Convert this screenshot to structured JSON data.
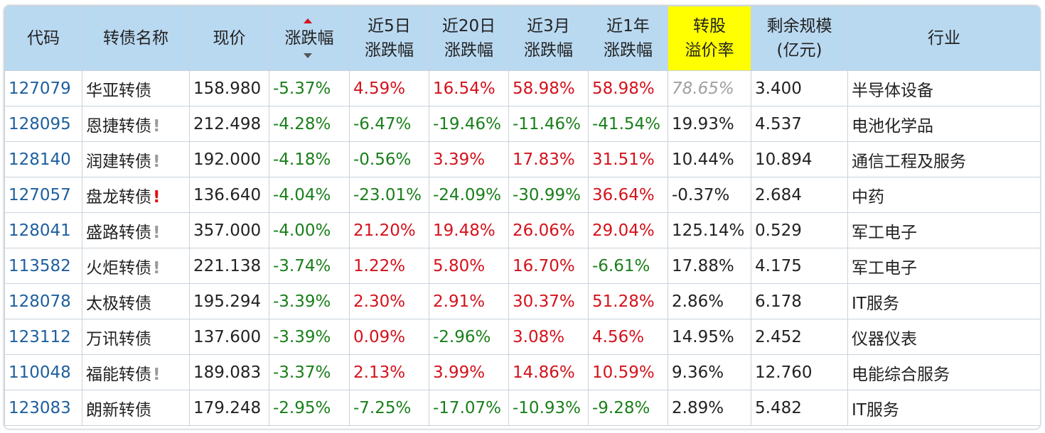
{
  "columns": [
    {
      "line1": "代码",
      "line2": ""
    },
    {
      "line1": "转债名称",
      "line2": ""
    },
    {
      "line1": "现价",
      "line2": ""
    },
    {
      "line1": "涨跌幅",
      "line2": ""
    },
    {
      "line1": "近5日",
      "line2": "涨跌幅"
    },
    {
      "line1": "近20日",
      "line2": "涨跌幅"
    },
    {
      "line1": "近3月",
      "line2": "涨跌幅"
    },
    {
      "line1": "近1年",
      "line2": "涨跌幅"
    },
    {
      "line1": "转股",
      "line2": "溢价率"
    },
    {
      "line1": "剩余规模",
      "line2": "(亿元)"
    },
    {
      "line1": "行业",
      "line2": ""
    }
  ],
  "sort_icons": {
    "asc": "sort-up-arrow-icon",
    "desc": "sort-down-arrow-icon"
  },
  "rows": [
    {
      "code": "127079",
      "name": "华亚转债",
      "flag": "",
      "price": "158.980",
      "chg": "-5.37%",
      "d5": "4.59%",
      "d20": "16.54%",
      "m3": "58.98%",
      "y1": "58.98%",
      "premium": "78.65%",
      "size": "3.400",
      "industry": "半导体设备"
    },
    {
      "code": "128095",
      "name": "恩捷转债",
      "flag": "!",
      "price": "212.498",
      "chg": "-4.28%",
      "d5": "-6.47%",
      "d20": "-19.46%",
      "m3": "-11.46%",
      "y1": "-41.54%",
      "premium": "19.93%",
      "size": "4.537",
      "industry": "电池化学品"
    },
    {
      "code": "128140",
      "name": "润建转债",
      "flag": "!",
      "price": "192.000",
      "chg": "-4.18%",
      "d5": "-0.56%",
      "d20": "3.39%",
      "m3": "17.83%",
      "y1": "31.51%",
      "premium": "10.44%",
      "size": "10.894",
      "industry": "通信工程及服务"
    },
    {
      "code": "127057",
      "name": "盘龙转债",
      "flag": "!",
      "price": "136.640",
      "chg": "-4.04%",
      "d5": "-23.01%",
      "d20": "-24.09%",
      "m3": "-30.99%",
      "y1": "36.64%",
      "premium": "-0.37%",
      "size": "2.684",
      "industry": "中药"
    },
    {
      "code": "128041",
      "name": "盛路转债",
      "flag": "!",
      "price": "357.000",
      "chg": "-4.00%",
      "d5": "21.20%",
      "d20": "19.48%",
      "m3": "26.06%",
      "y1": "29.04%",
      "premium": "125.14%",
      "size": "0.529",
      "industry": "军工电子"
    },
    {
      "code": "113582",
      "name": "火炬转债",
      "flag": "!",
      "price": "221.138",
      "chg": "-3.74%",
      "d5": "1.22%",
      "d20": "5.80%",
      "m3": "16.70%",
      "y1": "-6.61%",
      "premium": "17.88%",
      "size": "4.175",
      "industry": "军工电子"
    },
    {
      "code": "128078",
      "name": "太极转债",
      "flag": "",
      "price": "195.294",
      "chg": "-3.39%",
      "d5": "2.30%",
      "d20": "2.91%",
      "m3": "30.37%",
      "y1": "51.28%",
      "premium": "2.86%",
      "size": "6.178",
      "industry": "IT服务"
    },
    {
      "code": "123112",
      "name": "万讯转债",
      "flag": "",
      "price": "137.600",
      "chg": "-3.39%",
      "d5": "0.09%",
      "d20": "-2.96%",
      "m3": "3.08%",
      "y1": "4.56%",
      "premium": "14.95%",
      "size": "2.452",
      "industry": "仪器仪表"
    },
    {
      "code": "110048",
      "name": "福能转债",
      "flag": "!",
      "price": "189.083",
      "chg": "-3.37%",
      "d5": "2.13%",
      "d20": "3.99%",
      "m3": "14.86%",
      "y1": "10.59%",
      "premium": "9.36%",
      "size": "12.760",
      "industry": "电能综合服务"
    },
    {
      "code": "123083",
      "name": "朗新转债",
      "flag": "",
      "price": "179.248",
      "chg": "-2.95%",
      "d5": "-7.25%",
      "d20": "-17.07%",
      "m3": "-10.93%",
      "y1": "-9.28%",
      "premium": "2.89%",
      "size": "5.482",
      "industry": "IT服务"
    }
  ]
}
